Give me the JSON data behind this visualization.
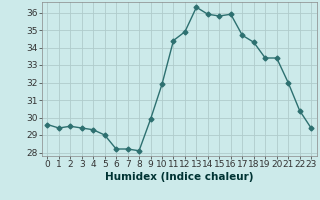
{
  "x": [
    0,
    1,
    2,
    3,
    4,
    5,
    6,
    7,
    8,
    9,
    10,
    11,
    12,
    13,
    14,
    15,
    16,
    17,
    18,
    19,
    20,
    21,
    22,
    23
  ],
  "y": [
    29.6,
    29.4,
    29.5,
    29.4,
    29.3,
    29.0,
    28.2,
    28.2,
    28.1,
    29.9,
    31.9,
    34.4,
    34.9,
    36.3,
    35.9,
    35.8,
    35.9,
    34.7,
    34.3,
    33.4,
    33.4,
    32.0,
    30.4,
    29.4
  ],
  "line_color": "#2d7070",
  "marker": "D",
  "marker_size": 2.5,
  "line_width": 1.0,
  "bg_color": "#cceaea",
  "grid_color": "#b0cccc",
  "xlabel": "Humidex (Indice chaleur)",
  "ylim": [
    27.8,
    36.6
  ],
  "xlim": [
    -0.5,
    23.5
  ],
  "yticks": [
    28,
    29,
    30,
    31,
    32,
    33,
    34,
    35,
    36
  ],
  "xticks": [
    0,
    1,
    2,
    3,
    4,
    5,
    6,
    7,
    8,
    9,
    10,
    11,
    12,
    13,
    14,
    15,
    16,
    17,
    18,
    19,
    20,
    21,
    22,
    23
  ],
  "tick_fontsize": 6.5,
  "xlabel_fontsize": 7.5
}
